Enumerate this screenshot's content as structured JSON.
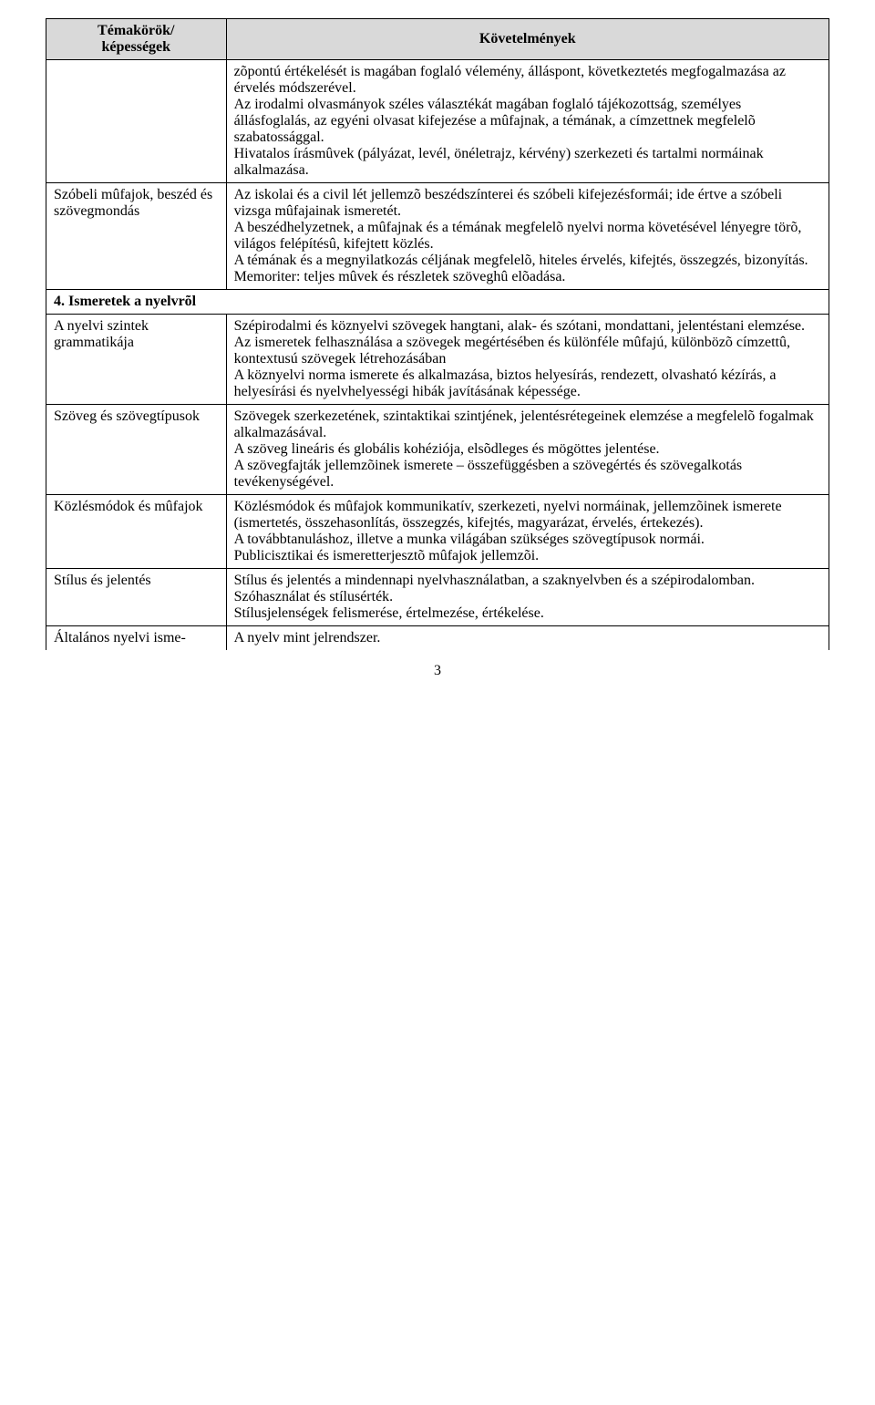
{
  "header": {
    "left": "Témakörök/\nképességek",
    "right": "Követelmények"
  },
  "rows": [
    {
      "left": "",
      "right": "zõpontú értékelését is magában foglaló vélemény, álláspont, következtetés megfogalmazása az érvelés módszerével.\nAz irodalmi olvasmányok széles választékát magában foglaló tájékozottság, személyes állásfoglalás, az egyéni olvasat kifejezése a mûfajnak, a témának, a címzettnek megfelelõ szabatossággal.\nHivatalos írásmûvek (pályázat, levél, önéletrajz, kérvény) szerkezeti és tartalmi normáinak alkalmazása."
    },
    {
      "left": "Szóbeli mûfajok, beszéd és szövegmondás",
      "right": "Az iskolai és a civil lét jellemzõ beszédszínterei és szóbeli kifejezésformái; ide értve a szóbeli vizsga mûfajainak ismeretét.\nA beszédhelyzetnek, a mûfajnak és a témának megfelelõ nyelvi norma követésével lényegre törõ, világos felépítésû, kifejtett közlés.\nA témának és a megnyilatkozás céljának megfelelõ, hiteles érvelés, kifejtés, összegzés, bizonyítás.\nMemoriter: teljes mûvek és részletek szöveghû elõadása."
    }
  ],
  "section4": {
    "heading": "4. Ismeretek a nyelvrõl",
    "rows": [
      {
        "left": "A nyelvi szintek grammatikája",
        "right": "Szépirodalmi és köznyelvi szövegek hangtani, alak- és szótani, mondattani, jelentéstani elemzése.\nAz ismeretek felhasználása a szövegek megértésében és különféle mûfajú, különbözõ címzettû, kontextusú szövegek létrehozásában\nA köznyelvi norma ismerete és alkalmazása, biztos helyesírás, rendezett, olvasható kézírás, a helyesírási és nyelvhelyességi hibák javításának képessége."
      },
      {
        "left": "Szöveg és szövegtípusok",
        "right": "Szövegek szerkezetének, szintaktikai szintjének, jelentésrétegeinek elemzése a megfelelõ fogalmak alkalmazásával.\nA szöveg lineáris és globális kohéziója, elsõdleges és mögöttes jelentése.\nA szövegfajták jellemzõinek ismerete – összefüggésben a szövegértés és szövegalkotás tevékenységével."
      },
      {
        "left": "Közlésmódok és mûfajok",
        "right": "Közlésmódok és mûfajok kommunikatív, szerkezeti, nyelvi normáinak, jellemzõinek ismerete (ismertetés, összehasonlítás, összegzés, kifejtés, magyarázat, érvelés, értekezés).\nA továbbtanuláshoz, illetve a munka világában szükséges szövegtípusok normái.\nPublicisztikai és ismeretterjesztõ mûfajok jellemzõi."
      },
      {
        "left": "Stílus és jelentés",
        "right": "Stílus és jelentés a mindennapi nyelvhasználatban, a szaknyelvben és a szépirodalomban.\nSzóhasználat és stílusérték.\nStílusjelenségek felismerése, értelmezése, értékelése."
      },
      {
        "left": "Általános nyelvi isme-",
        "right": "A nyelv mint jelrendszer.",
        "openBottom": true
      }
    ]
  },
  "pageNumber": "3"
}
